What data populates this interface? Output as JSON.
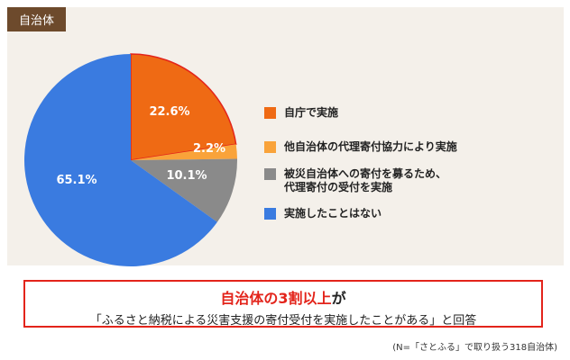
{
  "panel": {
    "tag_label": "自治体"
  },
  "chart_data": {
    "type": "pie",
    "slices": [
      {
        "label": "自庁で実施",
        "value": 22.6,
        "value_label": "22.6%",
        "color": "#ef6a14"
      },
      {
        "label": "他自治体の代理寄付協力により実施",
        "value": 2.2,
        "value_label": "2.2%",
        "color": "#f9a33a"
      },
      {
        "label": "被災自治体への寄付を募るため、\n代理寄付の受付を実施",
        "value": 10.1,
        "value_label": "10.1%",
        "color": "#8a8a8a"
      },
      {
        "label": "実施したことはない",
        "value": 65.1,
        "value_label": "65.1%",
        "color": "#3a7be0"
      }
    ],
    "start_angle": "12 o'clock",
    "direction": "clockwise",
    "legend_position": "right"
  },
  "callout": {
    "line1_em": "自治体の3割以上",
    "line1_rest": "が",
    "line2": "「ふるさと納税による災害支援の寄付受付を実施したことがある」と回答"
  },
  "footnote": "(N=「さとふる」で取り扱う318自治体)"
}
